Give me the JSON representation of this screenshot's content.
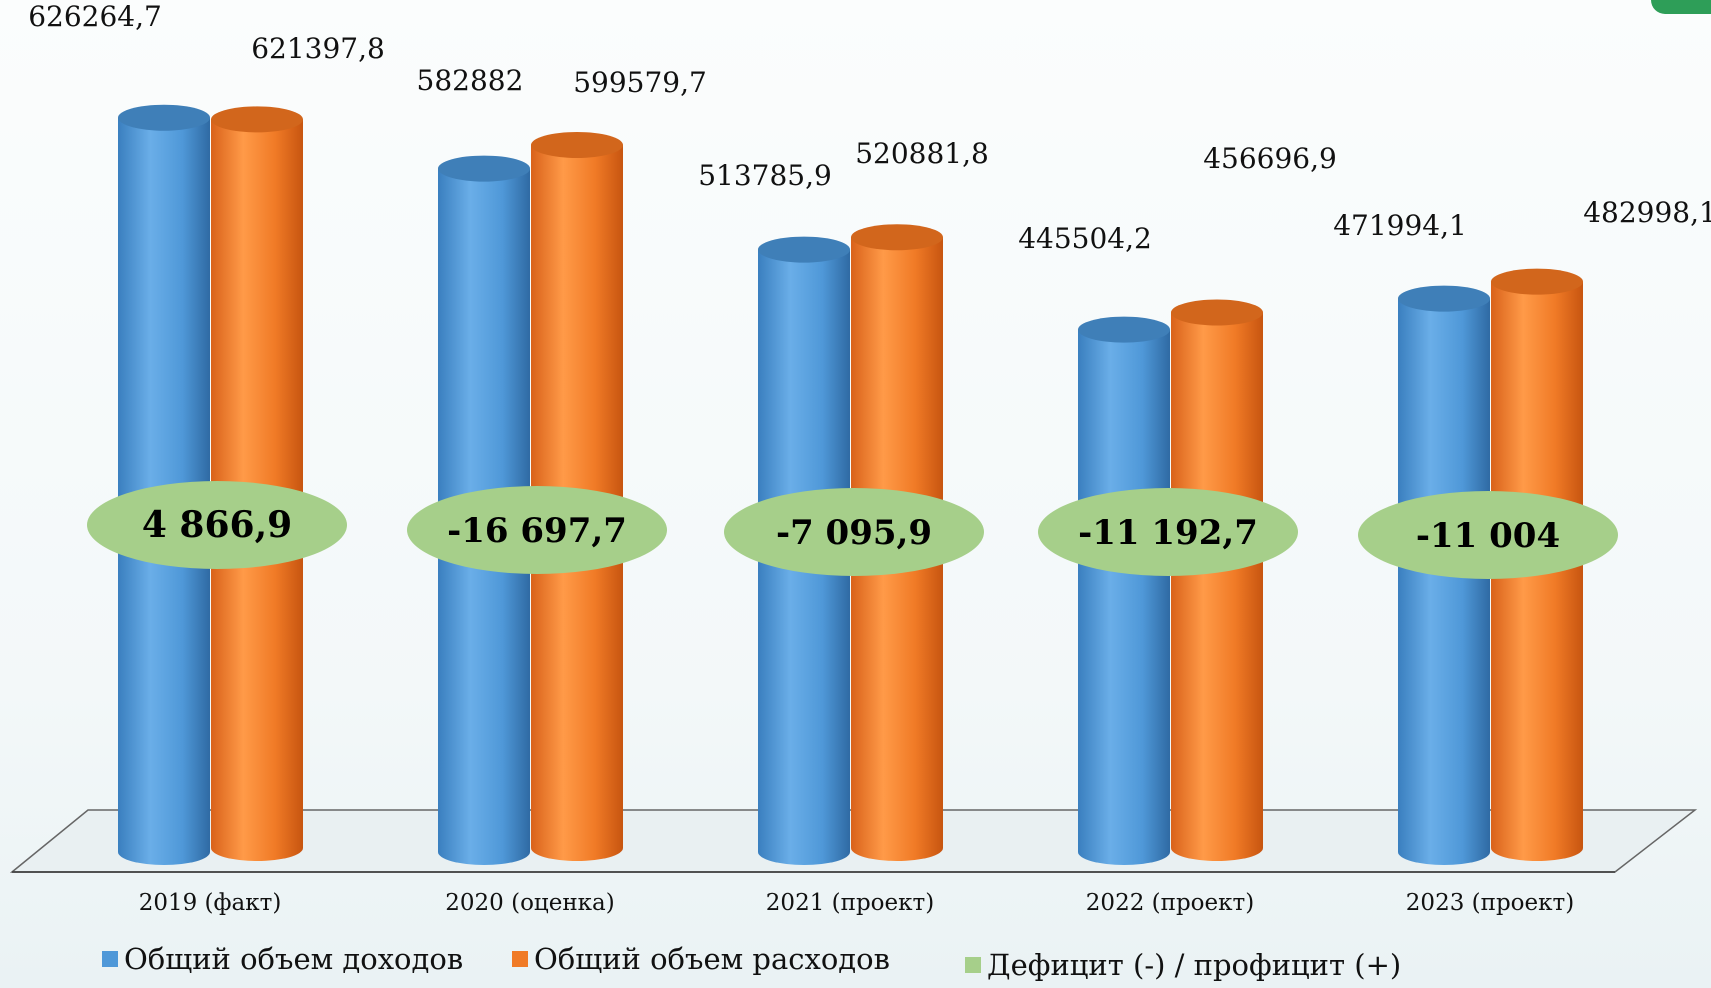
{
  "colors": {
    "income": "#4f98d8",
    "expense": "#f07a26",
    "balance": "#a6cf8a",
    "floor": "#e6eef0",
    "floor_line": "#555555"
  },
  "legend": {
    "income": "Общий объем доходов",
    "expense": "Общий объем расходов",
    "balance": "Дефицит (-) / профицит (+)"
  },
  "chart_data": {
    "type": "bar",
    "categories": [
      "2019 (факт)",
      "2020 (оценка)",
      "2021 (проект)",
      "2022 (проект)",
      "2023 (проект)"
    ],
    "series": [
      {
        "name": "Общий объем доходов",
        "values": [
          626264.7,
          582882,
          513785.9,
          445504.2,
          471994.1
        ],
        "labels": [
          "626264,7",
          "582882",
          "513785,9",
          "445504,2",
          "471994,1"
        ]
      },
      {
        "name": "Общий объем расходов",
        "values": [
          621397.8,
          599579.7,
          520881.8,
          456696.9,
          482998.1
        ],
        "labels": [
          "621397,8",
          "599579,7",
          "520881,8",
          "456696,9",
          "482998,1"
        ]
      },
      {
        "name": "Дефицит (-) / профицит (+)",
        "values": [
          4866.9,
          -16697.7,
          -7095.9,
          -11192.7,
          -11004
        ],
        "labels": [
          "4 866,9",
          "-16 697,7",
          "-7 095,9",
          "-11 192,7",
          "-11 004"
        ]
      }
    ]
  }
}
